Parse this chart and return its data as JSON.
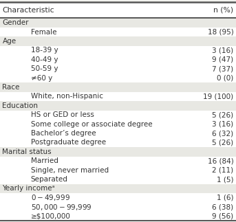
{
  "title_col1": "Characteristic",
  "title_col2": "n (%)",
  "rows": [
    {
      "label": "Gender",
      "value": "",
      "indent": 0,
      "shaded": true
    },
    {
      "label": "Female",
      "value": "18 (95)",
      "indent": 1,
      "shaded": false
    },
    {
      "label": "Age",
      "value": "",
      "indent": 0,
      "shaded": true
    },
    {
      "label": "18-39 y",
      "value": "3 (16)",
      "indent": 1,
      "shaded": false
    },
    {
      "label": "40-49 y",
      "value": "9 (47)",
      "indent": 1,
      "shaded": false
    },
    {
      "label": "50-59 y",
      "value": "7 (37)",
      "indent": 1,
      "shaded": false
    },
    {
      "label": "≠60 y",
      "value": "0 (0)",
      "indent": 1,
      "shaded": false
    },
    {
      "label": "Race",
      "value": "",
      "indent": 0,
      "shaded": true
    },
    {
      "label": "White, non-Hispanic",
      "value": "19 (100)",
      "indent": 1,
      "shaded": false
    },
    {
      "label": "Education",
      "value": "",
      "indent": 0,
      "shaded": true
    },
    {
      "label": "HS or GED or less",
      "value": "5 (26)",
      "indent": 1,
      "shaded": false
    },
    {
      "label": "Some college or associate degree",
      "value": "3 (16)",
      "indent": 1,
      "shaded": false
    },
    {
      "label": "Bachelor’s degree",
      "value": "6 (32)",
      "indent": 1,
      "shaded": false
    },
    {
      "label": "Postgraduate degree",
      "value": "5 (26)",
      "indent": 1,
      "shaded": false
    },
    {
      "label": "Marital status",
      "value": "",
      "indent": 0,
      "shaded": true
    },
    {
      "label": "Married",
      "value": "16 (84)",
      "indent": 1,
      "shaded": false
    },
    {
      "label": "Single, never married",
      "value": "2 (11)",
      "indent": 1,
      "shaded": false
    },
    {
      "label": "Separated",
      "value": "1 (5)",
      "indent": 1,
      "shaded": false
    },
    {
      "label": "Yearly incomeᵃ",
      "value": "",
      "indent": 0,
      "shaded": true
    },
    {
      "label": "$0-$49,999",
      "value": "1 (6)",
      "indent": 1,
      "shaded": false
    },
    {
      "label": "$50,000-$99,999",
      "value": "6 (38)",
      "indent": 1,
      "shaded": false
    },
    {
      "label": "≥$100,000",
      "value": "9 (56)",
      "indent": 1,
      "shaded": false
    }
  ],
  "bg_color": "#f2f2ee",
  "shaded_color": "#e8e8e3",
  "white_color": "#ffffff",
  "header_line_color": "#555555",
  "text_color": "#333333",
  "font_size": 7.5,
  "indent_amt": 0.12
}
